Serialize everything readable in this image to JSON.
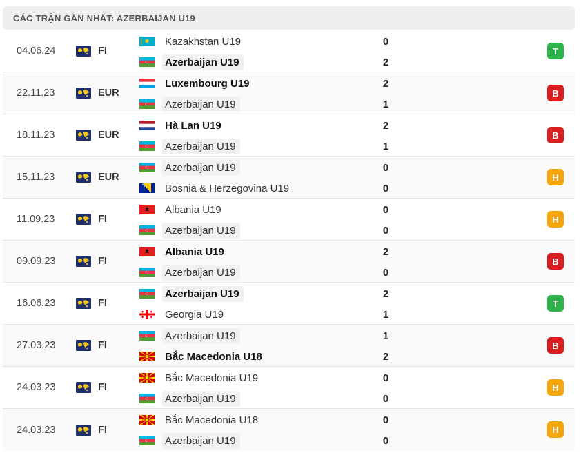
{
  "header": {
    "title": "CÁC TRẬN GẦN NHẤT: AZERBAIJAN U19"
  },
  "colors": {
    "win": "#2db34a",
    "loss": "#d81e1e",
    "draw": "#f4a60c"
  },
  "matches": [
    {
      "date": "04.06.24",
      "comp": "FI",
      "result": "T",
      "home": {
        "name": "Kazakhstan U19",
        "flag": "kazakhstan",
        "score": "0",
        "hl": false,
        "bold": false
      },
      "away": {
        "name": "Azerbaijan U19",
        "flag": "azerbaijan",
        "score": "2",
        "hl": true,
        "bold": true
      }
    },
    {
      "date": "22.11.23",
      "comp": "EUR",
      "result": "B",
      "home": {
        "name": "Luxembourg U19",
        "flag": "luxembourg",
        "score": "2",
        "hl": false,
        "bold": true
      },
      "away": {
        "name": "Azerbaijan U19",
        "flag": "azerbaijan",
        "score": "1",
        "hl": true,
        "bold": false
      }
    },
    {
      "date": "18.11.23",
      "comp": "EUR",
      "result": "B",
      "home": {
        "name": "Hà Lan U19",
        "flag": "netherlands",
        "score": "2",
        "hl": false,
        "bold": true
      },
      "away": {
        "name": "Azerbaijan U19",
        "flag": "azerbaijan",
        "score": "1",
        "hl": true,
        "bold": false
      }
    },
    {
      "date": "15.11.23",
      "comp": "EUR",
      "result": "H",
      "home": {
        "name": "Azerbaijan U19",
        "flag": "azerbaijan",
        "score": "0",
        "hl": true,
        "bold": false
      },
      "away": {
        "name": "Bosnia & Herzegovina U19",
        "flag": "bosnia",
        "score": "0",
        "hl": false,
        "bold": false
      }
    },
    {
      "date": "11.09.23",
      "comp": "FI",
      "result": "H",
      "home": {
        "name": "Albania U19",
        "flag": "albania",
        "score": "0",
        "hl": false,
        "bold": false
      },
      "away": {
        "name": "Azerbaijan U19",
        "flag": "azerbaijan",
        "score": "0",
        "hl": true,
        "bold": false
      }
    },
    {
      "date": "09.09.23",
      "comp": "FI",
      "result": "B",
      "home": {
        "name": "Albania U19",
        "flag": "albania",
        "score": "2",
        "hl": false,
        "bold": true
      },
      "away": {
        "name": "Azerbaijan U19",
        "flag": "azerbaijan",
        "score": "0",
        "hl": true,
        "bold": false
      }
    },
    {
      "date": "16.06.23",
      "comp": "FI",
      "result": "T",
      "home": {
        "name": "Azerbaijan U19",
        "flag": "azerbaijan",
        "score": "2",
        "hl": true,
        "bold": true
      },
      "away": {
        "name": "Georgia U19",
        "flag": "georgia",
        "score": "1",
        "hl": false,
        "bold": false
      }
    },
    {
      "date": "27.03.23",
      "comp": "FI",
      "result": "B",
      "home": {
        "name": "Azerbaijan U19",
        "flag": "azerbaijan",
        "score": "1",
        "hl": true,
        "bold": false
      },
      "away": {
        "name": "Bắc Macedonia U18",
        "flag": "macedonia",
        "score": "2",
        "hl": false,
        "bold": true
      }
    },
    {
      "date": "24.03.23",
      "comp": "FI",
      "result": "H",
      "home": {
        "name": "Bắc Macedonia U19",
        "flag": "macedonia",
        "score": "0",
        "hl": false,
        "bold": false
      },
      "away": {
        "name": "Azerbaijan U19",
        "flag": "azerbaijan",
        "score": "0",
        "hl": true,
        "bold": false
      }
    },
    {
      "date": "24.03.23",
      "comp": "FI",
      "result": "H",
      "home": {
        "name": "Bắc Macedonia U18",
        "flag": "macedonia",
        "score": "0",
        "hl": false,
        "bold": false
      },
      "away": {
        "name": "Azerbaijan U19",
        "flag": "azerbaijan",
        "score": "0",
        "hl": true,
        "bold": false
      }
    }
  ]
}
